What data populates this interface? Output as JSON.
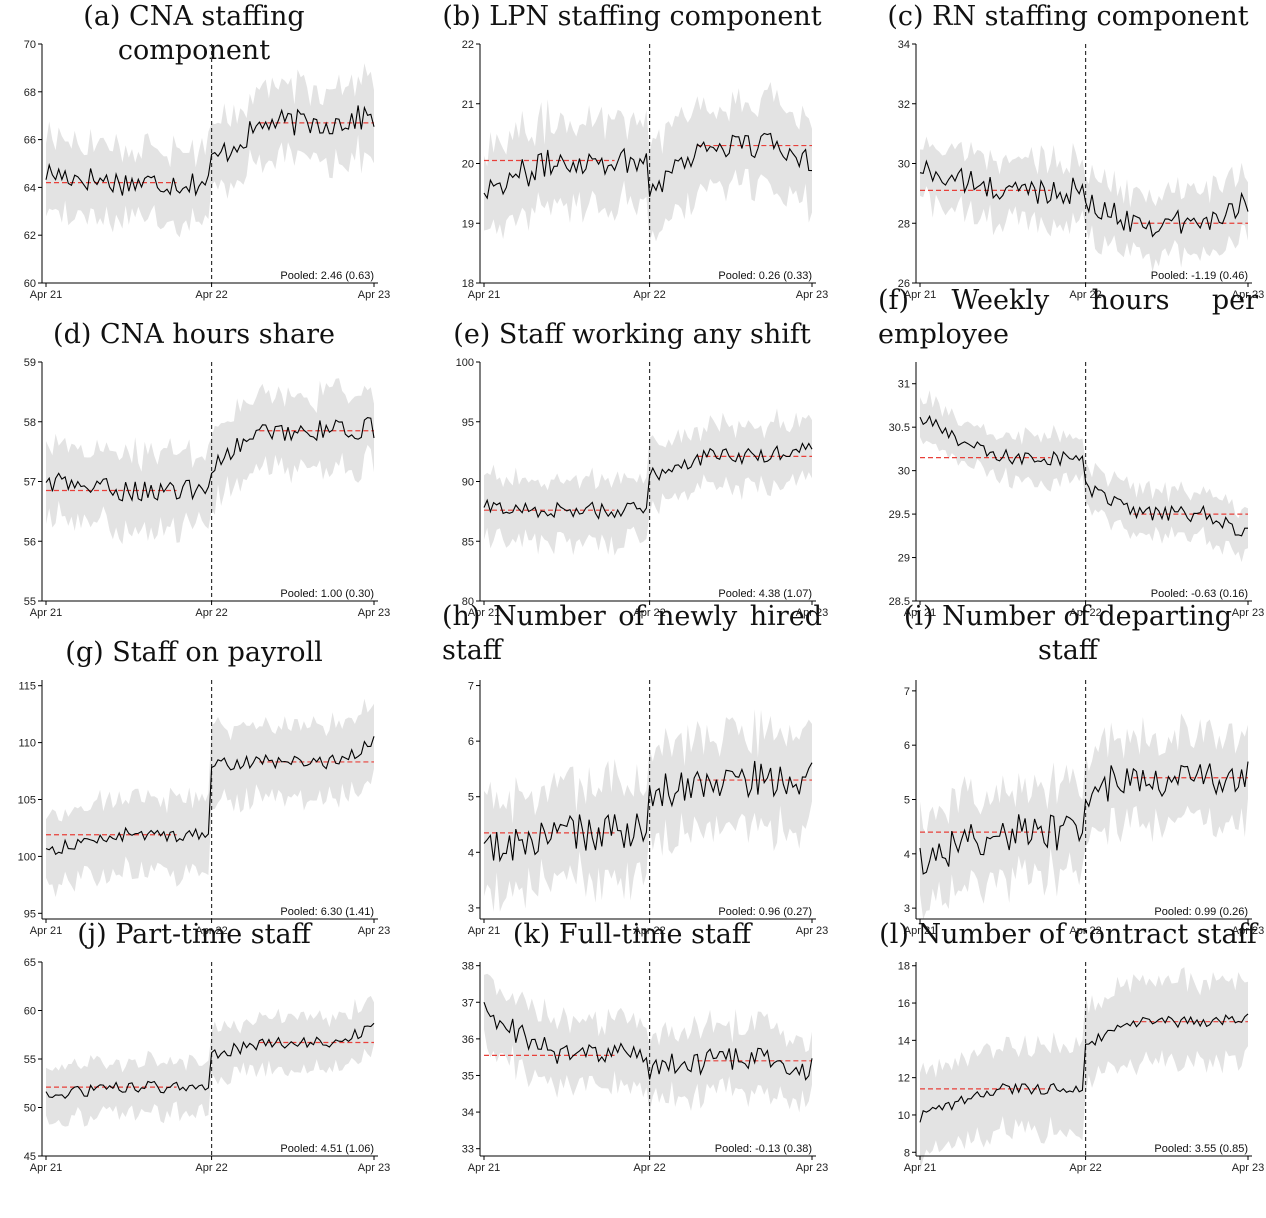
{
  "colors": {
    "band": "#e3e3e3",
    "line": "#000000",
    "mean": "#e8403a",
    "event": "#333333"
  },
  "chart_data": [
    {
      "id": "a",
      "type": "line",
      "title": "(a) CNA staffing component",
      "ylim": [
        60,
        70
      ],
      "yticks": [
        60,
        62,
        64,
        66,
        68,
        70
      ],
      "xticks": [
        "Apr 21",
        "Apr 22",
        "Apr 23"
      ],
      "pooled": "Pooled: 2.46 (0.63)",
      "pre_mean": 64.2,
      "post_mean": 66.7,
      "pre_start": 64.6,
      "jump_to": 65.1,
      "end": 67.0,
      "noise": 0.55,
      "band": 1.5,
      "event": 0.5
    },
    {
      "id": "b",
      "type": "line",
      "title": "(b) LPN staffing component",
      "ylim": [
        18,
        22
      ],
      "yticks": [
        18,
        19,
        20,
        21,
        22
      ],
      "xticks": [
        "Apr 21",
        "Apr 22",
        "Apr 23"
      ],
      "pooled": "Pooled: 0.26 (0.33)",
      "pre_mean": 20.05,
      "post_mean": 20.3,
      "pre_start": 19.6,
      "jump_to": 19.6,
      "end": 20.1,
      "noise": 0.25,
      "band": 0.7,
      "event": 0.5
    },
    {
      "id": "c",
      "type": "line",
      "title": "(c) RN staffing component",
      "ylim": [
        26,
        34
      ],
      "yticks": [
        26,
        28,
        30,
        32,
        34
      ],
      "xticks": [
        "Apr 21",
        "Apr 22",
        "Apr 23"
      ],
      "pooled": "Pooled: -1.19 (0.46)",
      "pre_mean": 29.1,
      "post_mean": 28.0,
      "pre_start": 29.8,
      "jump_to": 28.6,
      "end": 28.8,
      "noise": 0.45,
      "band": 1.0,
      "event": 0.5
    },
    {
      "id": "d",
      "type": "line",
      "title": "(d) CNA hours share",
      "ylim": [
        55,
        59
      ],
      "yticks": [
        55,
        56,
        57,
        58,
        59
      ],
      "xticks": [
        "Apr 21",
        "Apr 22",
        "Apr 23"
      ],
      "pooled": "Pooled: 1.00 (0.30)",
      "pre_mean": 56.85,
      "post_mean": 57.85,
      "pre_start": 57.0,
      "jump_to": 57.3,
      "end": 57.9,
      "noise": 0.18,
      "band": 0.6,
      "event": 0.5
    },
    {
      "id": "e",
      "type": "line",
      "title": "(e) Staff working any shift",
      "ylim": [
        80,
        100
      ],
      "yticks": [
        80,
        85,
        90,
        95,
        100
      ],
      "xticks": [
        "Apr 21",
        "Apr 22",
        "Apr 23"
      ],
      "pooled": "Pooled: 4.38 (1.07)",
      "pre_mean": 87.6,
      "post_mean": 92.1,
      "pre_start": 87.8,
      "jump_to": 90.5,
      "end": 93.4,
      "noise": 0.7,
      "band": 2.6,
      "event": 0.5
    },
    {
      "id": "f",
      "type": "line",
      "title": "(f) Weekly hours per employee",
      "ylim": [
        28.5,
        31.25
      ],
      "yticks": [
        28.5,
        29,
        29.5,
        30,
        30.5,
        31
      ],
      "xticks": [
        "Apr 21",
        "Apr 22",
        "Apr 23"
      ],
      "pooled": "Pooled: -0.63 (0.16)",
      "pre_mean": 30.15,
      "post_mean": 29.5,
      "pre_start": 30.6,
      "jump_to": 29.8,
      "end": 29.25,
      "noise": 0.09,
      "band": 0.25,
      "event": 0.5
    },
    {
      "id": "g",
      "type": "line",
      "title": "(g) Staff on payroll",
      "ylim": [
        94.5,
        115.5
      ],
      "yticks": [
        95,
        100,
        105,
        110,
        115
      ],
      "xticks": [
        "Apr 21",
        "Apr 22",
        "Apr 23"
      ],
      "pooled": "Pooled: 6.30 (1.41)",
      "pre_mean": 101.9,
      "post_mean": 108.3,
      "pre_start": 100.5,
      "jump_to": 108.0,
      "end": 110.0,
      "noise": 0.6,
      "band": 3.2,
      "event": 0.5
    },
    {
      "id": "h",
      "type": "line",
      "title": "(h) Number of newly hired staff",
      "ylim": [
        2.8,
        7.1
      ],
      "yticks": [
        3,
        4,
        5,
        6,
        7
      ],
      "xticks": [
        "Apr 21",
        "Apr 22",
        "Apr 23"
      ],
      "pooled": "Pooled: 0.96 (0.27)",
      "pre_mean": 4.35,
      "post_mean": 5.3,
      "pre_start": 4.0,
      "jump_to": 5.0,
      "end": 5.3,
      "noise": 0.35,
      "band": 0.8,
      "event": 0.5
    },
    {
      "id": "i",
      "type": "line",
      "title": "(i) Number of departing staff",
      "ylim": [
        2.8,
        7.2
      ],
      "yticks": [
        3,
        4,
        5,
        6,
        7
      ],
      "xticks": [
        "Apr 21",
        "Apr 22",
        "Apr 23"
      ],
      "pooled": "Pooled: 0.99 (0.26)",
      "pre_mean": 4.4,
      "post_mean": 5.4,
      "pre_start": 3.9,
      "jump_to": 5.2,
      "end": 5.4,
      "noise": 0.35,
      "band": 0.8,
      "event": 0.5
    },
    {
      "id": "j",
      "type": "line",
      "title": "(j) Part-time staff",
      "ylim": [
        45,
        65
      ],
      "yticks": [
        45,
        50,
        55,
        60,
        65
      ],
      "xticks": [
        "Apr 21",
        "Apr 22",
        "Apr 23"
      ],
      "pooled": "Pooled: 4.51 (1.06)",
      "pre_mean": 52.1,
      "post_mean": 56.7,
      "pre_start": 51.2,
      "jump_to": 55.5,
      "end": 58.2,
      "noise": 0.6,
      "band": 2.6,
      "event": 0.5
    },
    {
      "id": "k",
      "type": "line",
      "title": "(k) Full-time staff",
      "ylim": [
        32.8,
        38.1
      ],
      "yticks": [
        33,
        34,
        35,
        36,
        37,
        38
      ],
      "xticks": [
        "Apr 21",
        "Apr 22",
        "Apr 23"
      ],
      "pooled": "Pooled: -0.13 (0.38)",
      "pre_mean": 35.55,
      "post_mean": 35.4,
      "pre_start": 36.7,
      "jump_to": 35.2,
      "end": 35.2,
      "noise": 0.35,
      "band": 0.9,
      "event": 0.5
    },
    {
      "id": "l",
      "type": "line",
      "title": "(l) Number of contract staff",
      "ylim": [
        7.8,
        18.2
      ],
      "yticks": [
        8,
        10,
        12,
        14,
        16,
        18
      ],
      "xticks": [
        "Apr 21",
        "Apr 22",
        "Apr 23"
      ],
      "pooled": "Pooled: 3.55 (0.85)",
      "pre_mean": 11.4,
      "post_mean": 15.0,
      "pre_start": 9.9,
      "jump_to": 13.8,
      "end": 15.2,
      "noise": 0.3,
      "band": 2.2,
      "event": 0.5
    }
  ]
}
